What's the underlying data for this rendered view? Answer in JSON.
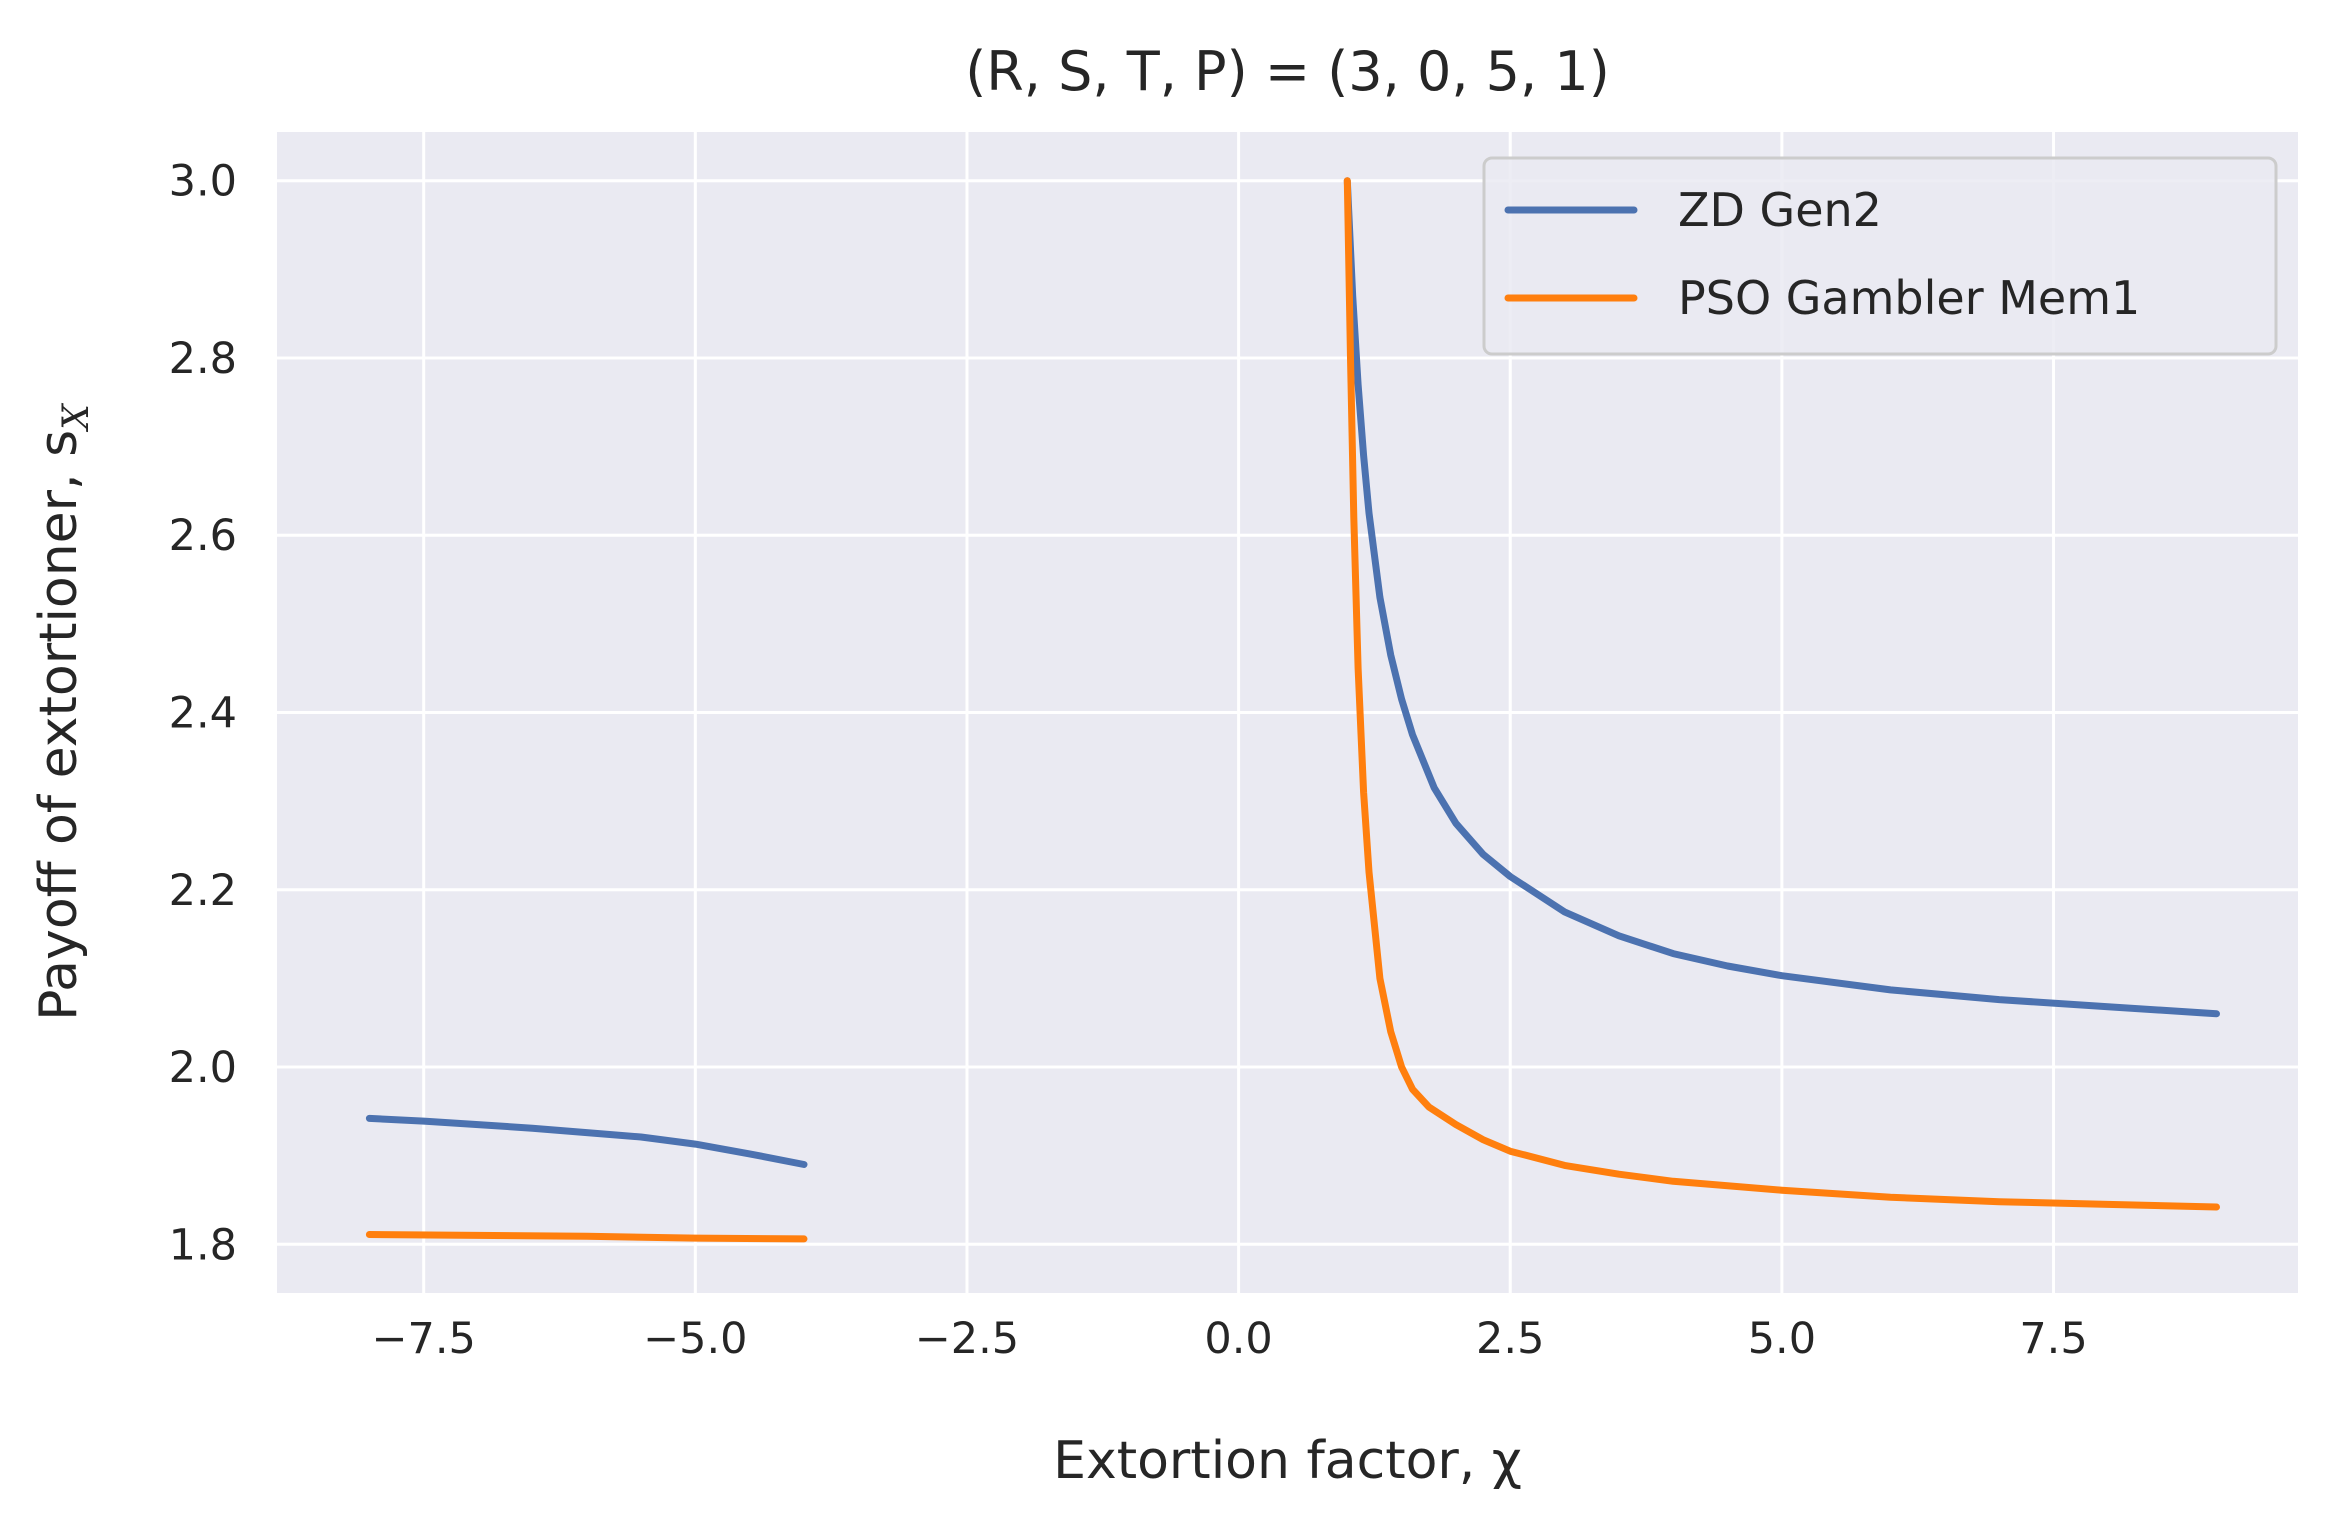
{
  "chart_data": {
    "type": "line",
    "title": "(R, S, T, P) = (3, 0, 5, 1)",
    "xlabel": "Extortion factor, χ",
    "ylabel": "Payoff of extortioner, s",
    "ylabel_subscript": "X",
    "xlim": [
      -8.85,
      9.75
    ],
    "ylim": [
      1.745,
      3.055
    ],
    "xticks": [
      -7.5,
      -5.0,
      -2.5,
      0.0,
      2.5,
      5.0,
      7.5
    ],
    "xtick_labels": [
      "−7.5",
      "−5.0",
      "−2.5",
      "0.0",
      "2.5",
      "5.0",
      "7.5"
    ],
    "yticks": [
      1.8,
      2.0,
      2.2,
      2.4,
      2.6,
      2.8,
      3.0
    ],
    "ytick_labels": [
      "1.8",
      "2.0",
      "2.2",
      "2.4",
      "2.6",
      "2.8",
      "3.0"
    ],
    "grid": true,
    "legend_position": "top-right",
    "background_color": "#eaeaf2",
    "grid_color": "#ffffff",
    "text_color": "#262626",
    "series": [
      {
        "name": "ZD Gen2",
        "color": "#4c72b0",
        "segments": [
          {
            "x": [
              -8.0,
              -7.5,
              -7.0,
              -6.5,
              -6.0,
              -5.5,
              -5.0,
              -4.5,
              -4.0
            ],
            "y": [
              1.942,
              1.939,
              1.935,
              1.931,
              1.926,
              1.921,
              1.913,
              1.902,
              1.89
            ]
          },
          {
            "x": [
              1.0,
              1.05,
              1.1,
              1.15,
              1.2,
              1.3,
              1.4,
              1.5,
              1.6,
              1.8,
              2.0,
              2.25,
              2.5,
              3.0,
              3.5,
              4.0,
              4.5,
              5.0,
              6.0,
              7.0,
              8.0,
              9.0
            ],
            "y": [
              3.0,
              2.87,
              2.77,
              2.69,
              2.625,
              2.53,
              2.465,
              2.415,
              2.375,
              2.315,
              2.275,
              2.24,
              2.215,
              2.175,
              2.148,
              2.128,
              2.114,
              2.103,
              2.087,
              2.076,
              2.068,
              2.06
            ]
          }
        ]
      },
      {
        "name": "PSO Gambler Mem1",
        "color": "#ff7f0e",
        "segments": [
          {
            "x": [
              -8.0,
              -7.0,
              -6.0,
              -5.0,
              -4.0
            ],
            "y": [
              1.811,
              1.81,
              1.809,
              1.807,
              1.806
            ]
          },
          {
            "x": [
              1.0,
              1.03,
              1.06,
              1.1,
              1.15,
              1.2,
              1.3,
              1.4,
              1.5,
              1.6,
              1.75,
              2.0,
              2.25,
              2.5,
              3.0,
              3.5,
              4.0,
              5.0,
              6.0,
              7.0,
              8.0,
              9.0
            ],
            "y": [
              3.0,
              2.8,
              2.62,
              2.45,
              2.31,
              2.22,
              2.1,
              2.04,
              2.0,
              1.975,
              1.955,
              1.935,
              1.918,
              1.905,
              1.889,
              1.879,
              1.871,
              1.861,
              1.853,
              1.848,
              1.845,
              1.842
            ]
          }
        ]
      }
    ]
  }
}
